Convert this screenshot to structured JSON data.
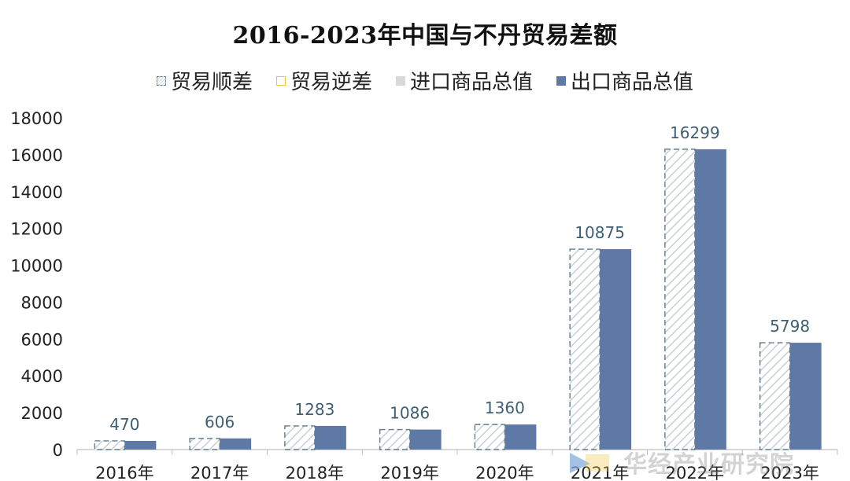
{
  "chart_data": {
    "type": "bar",
    "title": "2016-2023年中国与不丹贸易差额",
    "categories": [
      "2016年",
      "2017年",
      "2018年",
      "2019年",
      "2020年",
      "2021年",
      "2022年",
      "2023年"
    ],
    "series": [
      {
        "name": "贸易顺差",
        "values": [
          470,
          606,
          1283,
          1086,
          1360,
          10875,
          16299,
          5798
        ],
        "color": "#c6d0d6",
        "pattern": "diagonal-hatch"
      },
      {
        "name": "贸易逆差",
        "values": [
          0,
          0,
          0,
          0,
          0,
          0,
          0,
          0
        ],
        "color": "#e7c640"
      },
      {
        "name": "进口商品总值",
        "values": [
          0,
          0,
          0,
          0,
          0,
          0,
          0,
          0
        ],
        "color": "#d9d9d9"
      },
      {
        "name": "出口商品总值",
        "values": [
          470,
          606,
          1283,
          1086,
          1360,
          10875,
          16299,
          5798
        ],
        "color": "#5e79a6"
      }
    ],
    "data_labels": [
      "470",
      "606",
      "1283",
      "1086",
      "1360",
      "10875",
      "16299",
      "5798"
    ],
    "ylim": [
      0,
      18000
    ],
    "yticks": [
      0,
      2000,
      4000,
      6000,
      8000,
      10000,
      12000,
      14000,
      16000,
      18000
    ],
    "xlabel": "",
    "ylabel": "",
    "grid": false,
    "legend_position": "top"
  },
  "watermark": "华经产业研究院",
  "colors": {
    "label_text": "#3e5f73",
    "axis_text": "#222222",
    "axis_line": "#bfbfbf",
    "surplus_stroke": "#5f7d8a",
    "export_fill": "#5e79a6"
  }
}
